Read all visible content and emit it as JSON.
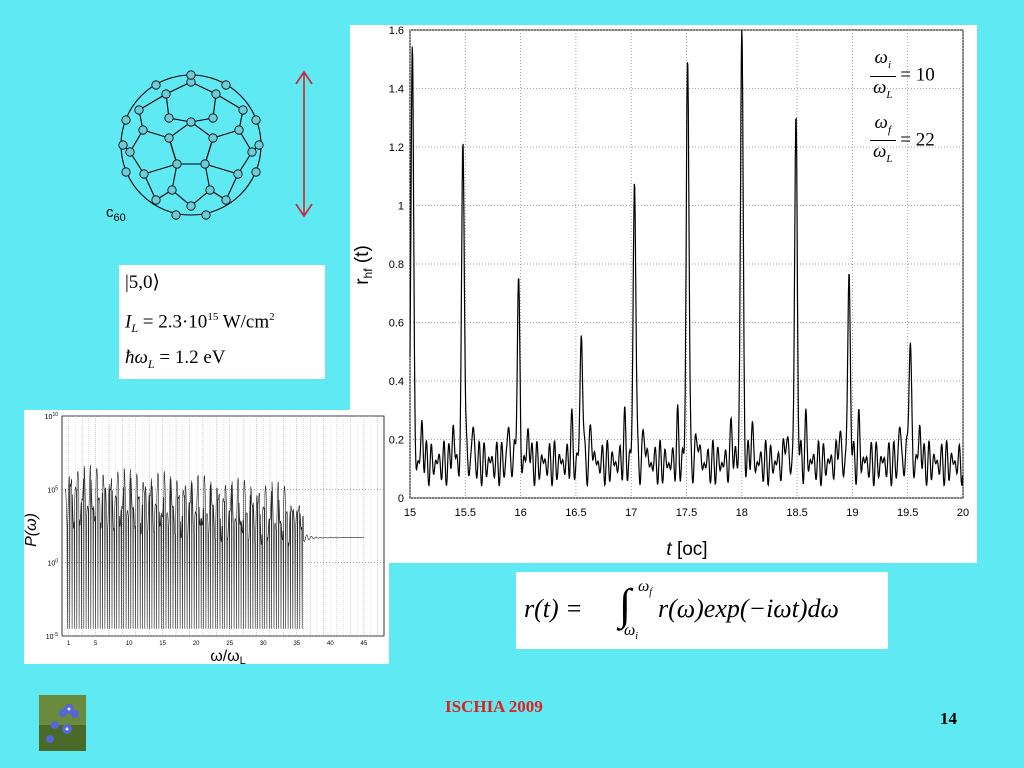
{
  "molecule": {
    "label": "c",
    "subscript": "60"
  },
  "params": {
    "state": "|5,0⟩",
    "intensity": {
      "symbol": "I",
      "sub": "L",
      "rhs": "= 2.3·10",
      "exp": "15",
      "unit": " W/cm",
      "unit_exp": "2"
    },
    "photon": {
      "lhs": "ħω",
      "sub": "L",
      "rhs": "= 1.2 eV"
    }
  },
  "main_chart": {
    "ylabel": "r",
    "ylabel_sub": "hf",
    "ylabel_tail": " (t)",
    "xlabel_italic": "t",
    "xlabel_rest": " [oc]",
    "xticks": [
      "15",
      "15.5",
      "16",
      "16.5",
      "17",
      "17.5",
      "18",
      "18.5",
      "19",
      "19.5",
      "20"
    ],
    "yticks": [
      "0",
      "0.2",
      "0.4",
      "0.6",
      "0.8",
      "1",
      "1.2",
      "1.4",
      "1.6"
    ],
    "ratios": [
      {
        "num": "ω",
        "num_sub": "i",
        "den": "ω",
        "den_sub": "L",
        "value": "= 10"
      },
      {
        "num": "ω",
        "num_sub": "f",
        "den": "ω",
        "den_sub": "L",
        "value": "= 22"
      }
    ]
  },
  "chart_data": [
    {
      "type": "line",
      "title": "",
      "xlabel": "t [oc]",
      "ylabel": "r_hf (t)",
      "xlim": [
        15,
        20
      ],
      "ylim": [
        0,
        1.6
      ],
      "grid": true,
      "series": [
        {
          "peaks_x": [
            15.02,
            15.48,
            15.98,
            16.55,
            17.03,
            17.51,
            18.0,
            18.49,
            18.97,
            19.52
          ],
          "peaks_y": [
            1.55,
            1.22,
            0.7,
            0.55,
            1.08,
            1.5,
            1.6,
            1.26,
            0.73,
            0.52
          ],
          "baseline_range": [
            0.03,
            0.3
          ]
        }
      ]
    },
    {
      "type": "line",
      "title": "",
      "xlabel": "ω/ωL",
      "ylabel": "P(ω)",
      "y_scale": "log",
      "xlim": [
        0,
        48
      ],
      "ylim_exponents": [
        -5,
        10
      ],
      "grid": true
    }
  ],
  "spectrum": {
    "ylabel": "P(ω)",
    "xlabel": "ω/ω",
    "xlabel_sub": "L",
    "xticks": [
      "1",
      "5",
      "10",
      "15",
      "20",
      "25",
      "30",
      "35",
      "40",
      "45"
    ],
    "yticks": [
      {
        "base": "10",
        "exp": "10"
      },
      {
        "base": "10",
        "exp": "5"
      },
      {
        "base": "10",
        "exp": "0"
      },
      {
        "base": "10",
        "exp": "-5"
      }
    ]
  },
  "formula": {
    "lhs": "r(t) =",
    "int_upper": "ω",
    "int_upper_sub": "f",
    "int_lower": "ω",
    "int_lower_sub": "i",
    "integrand": "r(ω)exp(−iωt)dω"
  },
  "footer": {
    "event": "ISCHIA 2009",
    "page": "14"
  },
  "colors": {
    "background": "#5fe9f3",
    "footer_text": "#e0201c",
    "arrow": "#d81f26",
    "molecule_fill": "#6ecbd8"
  }
}
